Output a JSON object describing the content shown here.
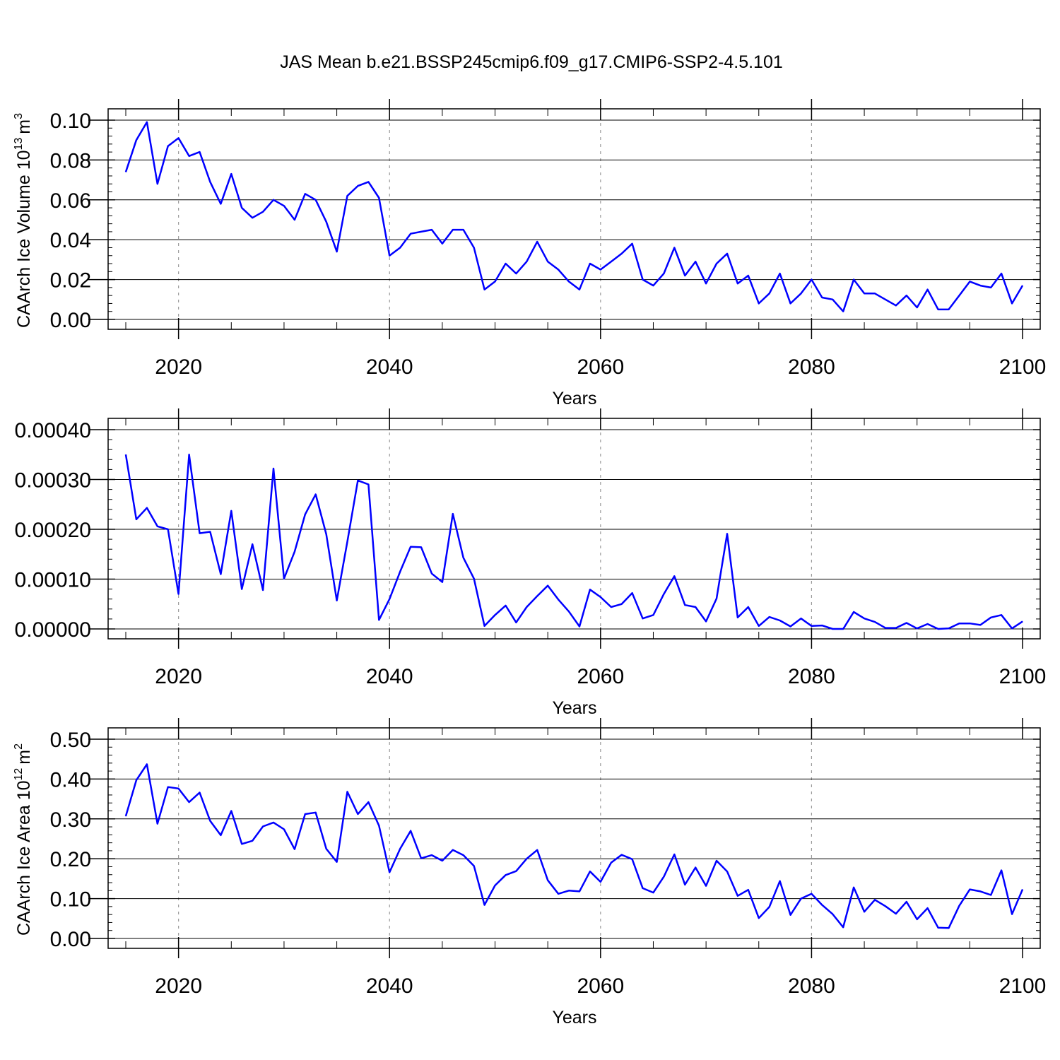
{
  "figure_title": "JAS Mean b.e21.BSSP245cmip6.f09_g17.CMIP6-SSP2-4.5.101",
  "line_color": "#0000ff",
  "chart_data": [
    {
      "type": "line",
      "title": "JAS Mean b.e21.BSSP245cmip6.f09_g17.CMIP6-SSP2-4.5.101",
      "xlabel": "Years",
      "ylabel": "CAArch Ice Volume 10",
      "ylabel_exp": "13",
      "ylabel_unit": "m",
      "ylabel_unit_exp": "3",
      "xlim": [
        2015,
        2100
      ],
      "ylim": [
        0.0,
        0.1
      ],
      "xticks": [
        2020,
        2040,
        2060,
        2080,
        2100
      ],
      "xtick_labels": [
        "2020",
        "2040",
        "2060",
        "2080",
        "2100"
      ],
      "yticks": [
        0.0,
        0.02,
        0.04,
        0.06,
        0.08,
        0.1
      ],
      "ytick_labels": [
        "0.00",
        "0.02",
        "0.04",
        "0.06",
        "0.08",
        "0.10"
      ],
      "grid_x": [
        2020,
        2040,
        2060,
        2080
      ],
      "series": [
        {
          "name": "CAArch Ice Volume",
          "x_start": 2015,
          "x_step": 1,
          "values": [
            0.074,
            0.09,
            0.099,
            0.068,
            0.087,
            0.091,
            0.082,
            0.084,
            0.069,
            0.058,
            0.073,
            0.056,
            0.051,
            0.054,
            0.06,
            0.057,
            0.05,
            0.063,
            0.06,
            0.049,
            0.034,
            0.062,
            0.067,
            0.069,
            0.061,
            0.032,
            0.036,
            0.043,
            0.044,
            0.045,
            0.038,
            0.045,
            0.045,
            0.036,
            0.015,
            0.019,
            0.028,
            0.023,
            0.029,
            0.039,
            0.029,
            0.025,
            0.019,
            0.015,
            0.028,
            0.025,
            0.029,
            0.033,
            0.038,
            0.02,
            0.017,
            0.023,
            0.036,
            0.022,
            0.029,
            0.018,
            0.028,
            0.033,
            0.018,
            0.022,
            0.008,
            0.013,
            0.023,
            0.008,
            0.013,
            0.02,
            0.011,
            0.01,
            0.004,
            0.02,
            0.013,
            0.013,
            0.01,
            0.007,
            0.012,
            0.006,
            0.015,
            0.005,
            0.005,
            0.012,
            0.019,
            0.017,
            0.016,
            0.023,
            0.008,
            0.017
          ]
        }
      ]
    },
    {
      "type": "line",
      "xlabel": "Years",
      "ylabel": "",
      "xlim": [
        2015,
        2100
      ],
      "ylim": [
        0.0,
        0.0004
      ],
      "xticks": [
        2020,
        2040,
        2060,
        2080,
        2100
      ],
      "xtick_labels": [
        "2020",
        "2040",
        "2060",
        "2080",
        "2100"
      ],
      "yticks": [
        0.0,
        0.0001,
        0.0002,
        0.0003,
        0.0004
      ],
      "ytick_labels": [
        "0.00000",
        "0.00010",
        "0.00020",
        "0.00030",
        "0.00040"
      ],
      "grid_x": [
        2020,
        2040,
        2060,
        2080
      ],
      "series": [
        {
          "name": "series",
          "x_start": 2015,
          "x_step": 1,
          "values": [
            0.00035,
            0.00022,
            0.000243,
            0.000206,
            0.0002,
            7e-05,
            0.00035,
            0.000192,
            0.000195,
            0.00011,
            0.000237,
            8e-05,
            0.00017,
            7.8e-05,
            0.000322,
            0.000101,
            0.000155,
            0.00023,
            0.00027,
            0.00019,
            5.7e-05,
            0.000175,
            0.000298,
            0.00029,
            1.8e-05,
            6e-05,
            0.000115,
            0.000165,
            0.000164,
            0.000111,
            9.4e-05,
            0.000231,
            0.000143,
            0.000101,
            6e-06,
            2.8e-05,
            4.7e-05,
            1.3e-05,
            4.4e-05,
            6.6e-05,
            8.7e-05,
            5.9e-05,
            3.5e-05,
            5e-06,
            7.9e-05,
            6.4e-05,
            4.4e-05,
            5e-05,
            7.2e-05,
            2.1e-05,
            2.8e-05,
            7e-05,
            0.000106,
            4.8e-05,
            4.4e-05,
            1.5e-05,
            6.1e-05,
            0.000191,
            2.3e-05,
            4.4e-05,
            6e-06,
            2.4e-05,
            1.7e-05,
            5e-06,
            2.1e-05,
            6e-06,
            7e-06,
            0.0,
            0.0,
            3.4e-05,
            2.1e-05,
            1.4e-05,
            2e-06,
            2e-06,
            1.2e-05,
            1e-06,
            1e-05,
            0.0,
            1e-06,
            1.1e-05,
            1.1e-05,
            8e-06,
            2.3e-05,
            2.8e-05,
            1e-06,
            1.5e-05
          ]
        }
      ]
    },
    {
      "type": "line",
      "xlabel": "Years",
      "ylabel": "CAArch Ice Area 10",
      "ylabel_exp": "12",
      "ylabel_unit": "m",
      "ylabel_unit_exp": "2",
      "xlim": [
        2015,
        2100
      ],
      "ylim": [
        0.0,
        0.5
      ],
      "xticks": [
        2020,
        2040,
        2060,
        2080,
        2100
      ],
      "xtick_labels": [
        "2020",
        "2040",
        "2060",
        "2080",
        "2100"
      ],
      "yticks": [
        0.0,
        0.1,
        0.2,
        0.3,
        0.4,
        0.5
      ],
      "ytick_labels": [
        "0.00",
        "0.10",
        "0.20",
        "0.30",
        "0.40",
        "0.50"
      ],
      "grid_x": [
        2020,
        2040,
        2060,
        2080
      ],
      "series": [
        {
          "name": "CAArch Ice Area",
          "x_start": 2015,
          "x_step": 1,
          "values": [
            0.307,
            0.397,
            0.437,
            0.288,
            0.38,
            0.376,
            0.342,
            0.366,
            0.295,
            0.259,
            0.32,
            0.237,
            0.245,
            0.281,
            0.291,
            0.274,
            0.224,
            0.312,
            0.316,
            0.225,
            0.192,
            0.368,
            0.312,
            0.342,
            0.283,
            0.166,
            0.225,
            0.27,
            0.201,
            0.209,
            0.195,
            0.222,
            0.209,
            0.182,
            0.084,
            0.133,
            0.159,
            0.169,
            0.2,
            0.222,
            0.146,
            0.112,
            0.12,
            0.118,
            0.168,
            0.142,
            0.19,
            0.21,
            0.199,
            0.126,
            0.115,
            0.155,
            0.211,
            0.135,
            0.178,
            0.132,
            0.195,
            0.168,
            0.107,
            0.122,
            0.051,
            0.079,
            0.144,
            0.059,
            0.1,
            0.112,
            0.084,
            0.061,
            0.028,
            0.128,
            0.067,
            0.097,
            0.081,
            0.062,
            0.092,
            0.048,
            0.076,
            0.027,
            0.026,
            0.082,
            0.123,
            0.118,
            0.109,
            0.171,
            0.061,
            0.123
          ]
        }
      ]
    }
  ]
}
